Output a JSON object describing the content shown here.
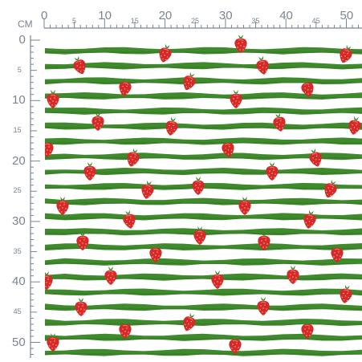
{
  "ruler": {
    "unit": "CM",
    "horizontal_labels": [
      "0",
      "5",
      "10",
      "15",
      "20",
      "25",
      "30",
      "35",
      "40",
      "45",
      "50"
    ],
    "vertical_labels": [
      "0",
      "5",
      "10",
      "15",
      "20",
      "25",
      "30",
      "35",
      "40",
      "45",
      "50"
    ],
    "color": "#7a8591"
  },
  "pattern": {
    "stripe_color": "#3f8a2c",
    "stripe_dark": "#2f6e1f",
    "background": "#ffffff",
    "strawberry_color": "#d62a2a",
    "leaf_color": "#3f8a2c"
  }
}
